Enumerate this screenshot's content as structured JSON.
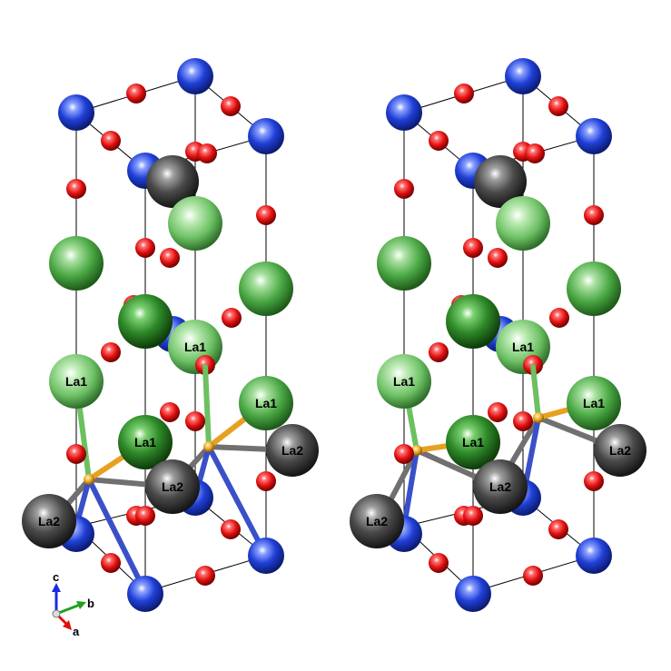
{
  "atom_labels": {
    "la1": "La1",
    "la2": "La2"
  },
  "axes": {
    "a": "a",
    "b": "b",
    "c": "c"
  },
  "colors": {
    "la1": "#3fa03a",
    "la2": "#4a4a4a",
    "blue": "#1f3fd0",
    "oxygen": "#dd1111",
    "center": "#e8a020",
    "bond_blue": "#3a50c8",
    "bond_green": "#6cc060",
    "bond_gray": "#707070",
    "cell_line": "#000000"
  }
}
